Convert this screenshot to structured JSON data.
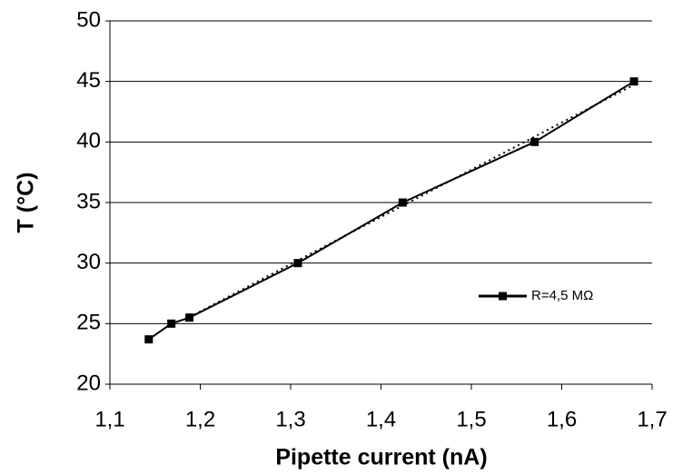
{
  "chart_data": {
    "type": "line",
    "xlabel": "Pipette current (nA)",
    "ylabel": "T (°C)",
    "series": [
      {
        "name": "R=4,5 MΩ",
        "color": "#000000",
        "x": [
          1.143,
          1.168,
          1.188,
          1.308,
          1.424,
          1.57,
          1.68
        ],
        "values": [
          23.7,
          25.0,
          25.5,
          30.0,
          35.0,
          40.0,
          45.0
        ]
      }
    ],
    "xlim": [
      1.1,
      1.7
    ],
    "xticks": [
      {
        "value": 1.1,
        "label": "1,1"
      },
      {
        "value": 1.2,
        "label": "1,2"
      },
      {
        "value": 1.3,
        "label": "1,3"
      },
      {
        "value": 1.4,
        "label": "1,4"
      },
      {
        "value": 1.5,
        "label": "1,5"
      },
      {
        "value": 1.6,
        "label": "1,6"
      },
      {
        "value": 1.7,
        "label": "1,7"
      }
    ],
    "ylim": [
      20,
      50
    ],
    "yticks": [
      20,
      25,
      30,
      35,
      40,
      45,
      50
    ],
    "grid": true,
    "trendline": true,
    "legend": "right"
  }
}
